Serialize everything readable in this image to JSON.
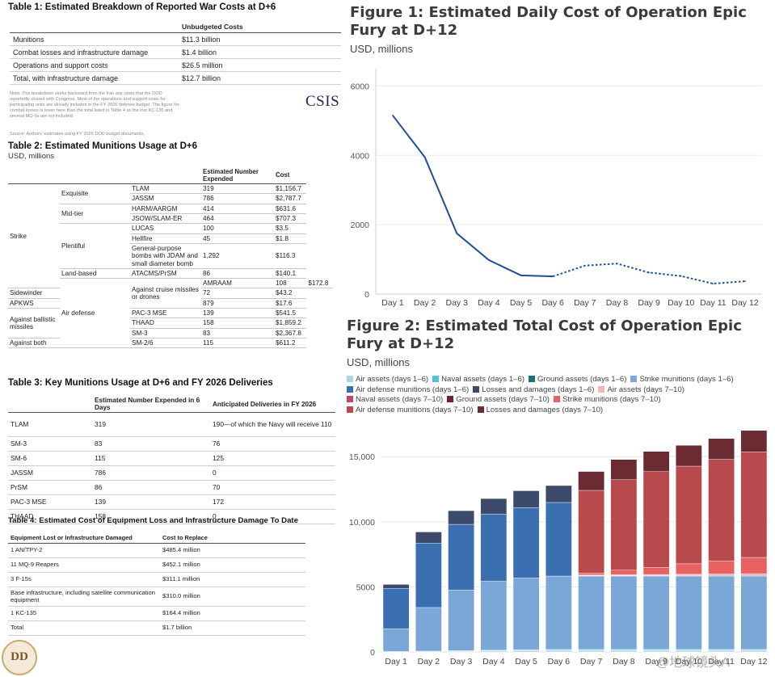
{
  "table1": {
    "title": "Table 1: Estimated Breakdown of Reported War Costs at D+6",
    "col_header": "Unbudgeted Costs",
    "rows": [
      {
        "label": "Munitions",
        "value": "$11.3 billion"
      },
      {
        "label": "Combat losses and infrastructure damage",
        "value": "$1.4 billion"
      },
      {
        "label": "Operations and support costs",
        "value": "$26.5 million"
      },
      {
        "label": "Total, with infrastructure damage",
        "value": "$12.7 billion"
      }
    ],
    "note": "Note: This breakdown works backward from the Iran war costs that the DOD reportedly shared with Congress. Most of the operations and support costs for participating units are already included in the FY 2026 defense budget. The figure for combat losses is lower here than the total listed in Table 4 as the lost KC-135 and several MQ-9s are not included.",
    "source": "Source: Authors' estimates using FY 2026 DOD budget documents.",
    "logo": "CSIS"
  },
  "table2": {
    "title": "Table 2: Estimated Munitions Usage at D+6",
    "subtitle": "USD, millions",
    "col_expended": "Estimated Number Expended",
    "col_cost": "Cost",
    "groups": [
      {
        "mission": "Strike",
        "cats": [
          {
            "cat": "Exquisite",
            "items": [
              [
                "TLAM",
                "319",
                "$1,156.7"
              ],
              [
                "JASSM",
                "786",
                "$2,787.7"
              ]
            ]
          },
          {
            "cat": "Mid-tier",
            "items": [
              [
                "HARM/AARGM",
                "414",
                "$631.6"
              ],
              [
                "JSOW/SLAM-ER",
                "464",
                "$707.3"
              ]
            ]
          },
          {
            "cat": "Plentiful",
            "items": [
              [
                "LUCAS",
                "100",
                "$3.5"
              ],
              [
                "Hellfire",
                "45",
                "$1.8"
              ],
              [
                "General-purpose bombs with JDAM and small diameter bomb",
                "1,292",
                "$116.3"
              ]
            ]
          },
          {
            "cat": "Land-based",
            "items": [
              [
                "ATACMS/PrSM",
                "86",
                "$140.1"
              ]
            ]
          }
        ]
      },
      {
        "mission": "Air defense",
        "cats": [
          {
            "cat": "Against cruise missiles or drones",
            "items": [
              [
                "AMRAAM",
                "108",
                "$172.8"
              ],
              [
                "Sidewinder",
                "72",
                "$43.2"
              ],
              [
                "APKWS",
                "879",
                "$17.6"
              ]
            ]
          },
          {
            "cat": "Against ballistic missiles",
            "items": [
              [
                "PAC-3 MSE",
                "139",
                "$541.5"
              ],
              [
                "THAAD",
                "158",
                "$1,859.2"
              ],
              [
                "SM-3",
                "83",
                "$2,367.8"
              ]
            ]
          },
          {
            "cat": "Against both",
            "items": [
              [
                "SM-2/6",
                "115",
                "$611.2"
              ]
            ]
          }
        ]
      }
    ]
  },
  "table3": {
    "title": "Table 3: Key Munitions Usage at D+6 and FY 2026 Deliveries",
    "col_expended": "Estimated Number Expended in 6 Days",
    "col_deliveries": "Anticipated Deliveries in FY 2026",
    "rows": [
      [
        "TLAM",
        "319",
        "190—of which the Navy will receive 110"
      ],
      [
        "SM-3",
        "83",
        "76"
      ],
      [
        "SM-6",
        "115",
        "125"
      ],
      [
        "JASSM",
        "786",
        "0"
      ],
      [
        "PrSM",
        "86",
        "70"
      ],
      [
        "PAC-3 MSE",
        "139",
        "172"
      ],
      [
        "THAAD",
        "158",
        "0"
      ]
    ]
  },
  "table4": {
    "title": "Table 4: Estimated Cost of Equipment Loss and Infrastructure Damage To Date",
    "col_item": "Equipment Lost or Infrastructure Damaged",
    "col_cost": "Cost to Replace",
    "rows": [
      [
        "1 AN/TPY-2",
        "$485.4 million"
      ],
      [
        "11 MQ-9 Reapers",
        "$452.1 million"
      ],
      [
        "3 F-15s",
        "$311.1 million"
      ],
      [
        "Base infrastructure, including satellite communication equipment",
        "$310.0 million"
      ],
      [
        "1 KC-135",
        "$164.4 million"
      ],
      [
        "Total",
        "$1.7 billion"
      ]
    ]
  },
  "badge_text": "DD",
  "watermark": "@地球镜头A",
  "chart_data": [
    {
      "type": "line",
      "title": "Figure 1: Estimated Daily Cost of Operation Epic Fury at D+12",
      "subtitle": "USD, millions",
      "x": [
        "Day 1",
        "Day 2",
        "Day 3",
        "Day 4",
        "Day 5",
        "Day 6",
        "Day 7",
        "Day 8",
        "Day 9",
        "Day 10",
        "Day 11",
        "Day 12"
      ],
      "series": [
        {
          "name": "Daily cost",
          "values": [
            5150,
            3950,
            1750,
            980,
            540,
            510,
            820,
            880,
            620,
            520,
            300,
            370
          ]
        }
      ],
      "dashed_from_index": 5,
      "ylim": [
        0,
        6500
      ],
      "yticks": [
        "0",
        "2000",
        "4000",
        "6000"
      ],
      "grid": true,
      "color": "#1f4e96"
    },
    {
      "type": "bar",
      "stacked": true,
      "title": "Figure 2: Estimated Total Cost of Operation Epic Fury at D+12",
      "subtitle": "USD, millions",
      "categories": [
        "Day 1",
        "Day 2",
        "Day 3",
        "Day 4",
        "Day 5",
        "Day 6",
        "Day 7",
        "Day 8",
        "Day 9",
        "Day 10",
        "Day 11",
        "Day 12"
      ],
      "ylim": [
        0,
        17000
      ],
      "yticks": [
        "0",
        "5000",
        "10,000",
        "15,000"
      ],
      "legend_position": "top",
      "series": [
        {
          "name": "Air assets (days 1–6)",
          "color": "#a8d8e8",
          "values": [
            20,
            40,
            60,
            80,
            100,
            120,
            120,
            120,
            120,
            120,
            120,
            120
          ]
        },
        {
          "name": "Naval assets (days 1–6)",
          "color": "#4fc3d8",
          "values": [
            10,
            20,
            30,
            40,
            50,
            60,
            60,
            60,
            60,
            60,
            60,
            60
          ]
        },
        {
          "name": "Ground assets (days 1–6)",
          "color": "#1f6f82",
          "values": [
            5,
            5,
            10,
            10,
            10,
            10,
            10,
            10,
            10,
            10,
            10,
            10
          ]
        },
        {
          "name": "Strike munitions (days 1–6)",
          "color": "#7ba7d6",
          "values": [
            1750,
            3350,
            4650,
            5300,
            5520,
            5640,
            5640,
            5640,
            5640,
            5640,
            5640,
            5640
          ]
        },
        {
          "name": "Air defense munitions (days 1–6)",
          "color": "#3a6fb2",
          "values": [
            3100,
            4950,
            5050,
            5150,
            5400,
            5650,
            0,
            0,
            0,
            0,
            0,
            0
          ]
        },
        {
          "name": "Losses and damages (days 1–6)",
          "color": "#3c4a6b",
          "values": [
            300,
            850,
            1050,
            1200,
            1300,
            1300,
            0,
            0,
            0,
            0,
            0,
            0
          ]
        },
        {
          "name": "Air assets (days 7–10)",
          "color": "#f4b6b6",
          "values": [
            0,
            0,
            0,
            0,
            0,
            0,
            40,
            50,
            60,
            70,
            80,
            90
          ]
        },
        {
          "name": "Naval assets (days 7–10)",
          "color": "#c2456a",
          "values": [
            0,
            0,
            0,
            0,
            0,
            0,
            30,
            40,
            50,
            60,
            70,
            80
          ]
        },
        {
          "name": "Ground assets (days 7–10)",
          "color": "#6e2035",
          "values": [
            0,
            0,
            0,
            0,
            0,
            0,
            10,
            10,
            10,
            10,
            10,
            10
          ]
        },
        {
          "name": "Strike munitions (days 7–10)",
          "color": "#e86262",
          "values": [
            0,
            0,
            0,
            0,
            0,
            0,
            150,
            350,
            550,
            800,
            1000,
            1250
          ]
        },
        {
          "name": "Air defense munitions (days 7–10)",
          "color": "#b84a4d",
          "values": [
            0,
            0,
            0,
            0,
            0,
            0,
            6350,
            6950,
            7350,
            7500,
            7800,
            8100
          ]
        },
        {
          "name": "Losses and damages (days 7–10)",
          "color": "#6b2b33",
          "values": [
            0,
            0,
            0,
            0,
            0,
            0,
            1450,
            1550,
            1550,
            1600,
            1600,
            1650
          ]
        }
      ]
    }
  ]
}
